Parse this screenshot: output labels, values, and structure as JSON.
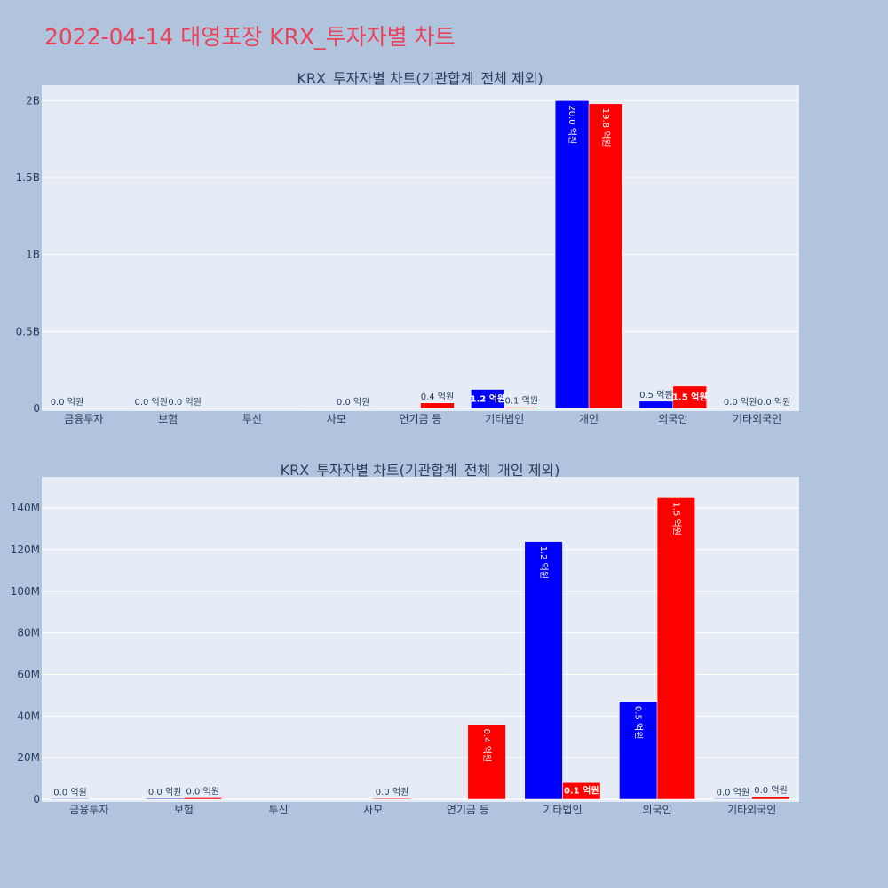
{
  "page": {
    "title": "2022-04-14 대영포장 KRX_투자자별 차트",
    "background": "#b0c4de",
    "title_color": "#e8435a"
  },
  "colors": {
    "buy": "#0000ff",
    "sell": "#ff0000",
    "plot_bg": "#e5ecf6"
  },
  "chart_data": [
    {
      "type": "bar",
      "title": "KRX_투자자별 차트(기관합계_전체 제외)",
      "categories": [
        "금융투자",
        "보험",
        "투신",
        "사모",
        "연기금 등",
        "기타법인",
        "개인",
        "외국인",
        "기타외국인"
      ],
      "series": [
        {
          "color": "#0000ff",
          "values": [
            1000000,
            1000000,
            0,
            1000000,
            0,
            124000000,
            2000000000,
            47000000,
            500000
          ],
          "text": [
            "0.0 억원",
            "0.0 억원",
            "",
            "",
            "",
            "1.2 억원",
            "20.0 억원",
            "0.5 억원",
            "0.0 억원"
          ]
        },
        {
          "color": "#ff0000",
          "values": [
            0,
            1000000,
            0,
            500000,
            36000000,
            8000000,
            1980000000,
            145000000,
            1000000
          ],
          "text": [
            "",
            "0.0 억원",
            "",
            "0.0 억원",
            "0.4 억원",
            "0.1 억원",
            "19.8 억원",
            "1.5 억원",
            "0.0 억원"
          ]
        }
      ],
      "yticks": [
        0,
        500000000,
        1000000000,
        1500000000,
        2000000000
      ],
      "ytick_labels": [
        "0",
        "0.5B",
        "1B",
        "1.5B",
        "2B"
      ],
      "ylim": [
        0,
        2100000000
      ]
    },
    {
      "type": "bar",
      "title": "KRX_투자자별 차트(기관합계_전체_개인 제외)",
      "categories": [
        "금융투자",
        "보험",
        "투신",
        "사모",
        "연기금 등",
        "기타법인",
        "외국인",
        "기타외국인"
      ],
      "series": [
        {
          "color": "#0000ff",
          "values": [
            300000,
            400000,
            0,
            0,
            0,
            124000000,
            47000000,
            300000
          ],
          "text": [
            "0.0 억원",
            "0.0 억원",
            "",
            "",
            "",
            "1.2 억원",
            "0.5 억원",
            "0.0 억원"
          ]
        },
        {
          "color": "#ff0000",
          "values": [
            0,
            700000,
            0,
            400000,
            36000000,
            8000000,
            145000000,
            1200000
          ],
          "text": [
            "",
            "0.0 억원",
            "",
            "0.0 억원",
            "0.4 억원",
            "0.1 억원",
            "1.5 억원",
            "0.0 억원"
          ]
        }
      ],
      "yticks": [
        0,
        20000000,
        40000000,
        60000000,
        80000000,
        100000000,
        120000000,
        140000000
      ],
      "ytick_labels": [
        "0",
        "20M",
        "40M",
        "60M",
        "80M",
        "100M",
        "120M",
        "140M"
      ],
      "ylim": [
        0,
        155000000
      ]
    }
  ]
}
